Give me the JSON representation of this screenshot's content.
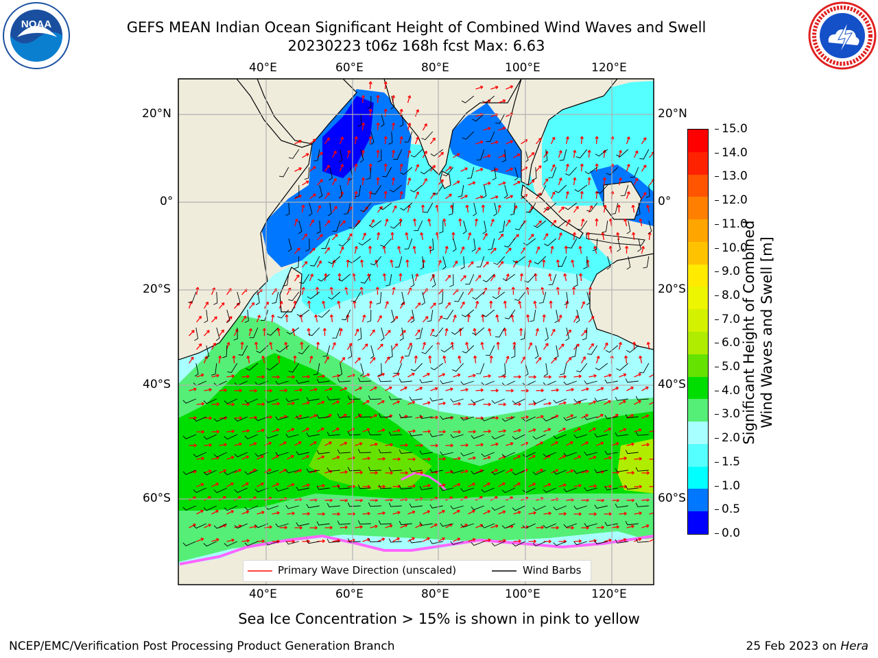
{
  "header": {
    "title_line1": "GEFS MEAN Indian Ocean Significant Height of Combined Wind Waves and Swell",
    "title_line2": "20230223 t06z 168h fcst   Max: 6.63"
  },
  "logos": {
    "noaa": {
      "text": "NOAA",
      "ring_text": "NATIONAL OCEANIC AND ATMOSPHERIC ADMINISTRATION · U.S. DEPARTMENT OF COMMERCE"
    },
    "nws": {
      "ring_text": "NATIONAL WEATHER SERVICE"
    }
  },
  "map": {
    "lon_ticks": [
      "40°E",
      "60°E",
      "80°E",
      "100°E",
      "120°E"
    ],
    "lat_ticks": [
      "20°N",
      "0°",
      "20°S",
      "40°S",
      "60°S"
    ],
    "colors": {
      "land": "#efecdc",
      "grid": "#b0b0b0"
    }
  },
  "legend": {
    "wave_direction": "Primary Wave Direction (unscaled)",
    "wind_barbs": "Wind Barbs",
    "wave_color": "#ff0000",
    "barb_color": "#000000"
  },
  "colorbar": {
    "label_line1": "Significant Height of Combined",
    "label_line2": "Wind Waves and Swell [m]",
    "ticks": [
      "15.0",
      "14.0",
      "13.0",
      "12.0",
      "11.0",
      "10.0",
      "9.0",
      "8.0",
      "7.0",
      "6.0",
      "5.0",
      "4.0",
      "3.0",
      "2.0",
      "1.5",
      "1.0",
      "0.5",
      "0.0"
    ],
    "colors": [
      "#ff0000",
      "#ff2200",
      "#ff5500",
      "#ff8000",
      "#ffa500",
      "#ffc200",
      "#ffea00",
      "#eef500",
      "#d4f200",
      "#b0ec00",
      "#66e200",
      "#00dd00",
      "#55ee77",
      "#a8ffff",
      "#55ffff",
      "#00ffff",
      "#0077ff",
      "#0000ff"
    ]
  },
  "footer": {
    "sea_ice_note": "Sea Ice Concentration > 15% is shown in pink to yellow",
    "branch": "NCEP/EMC/Verification Post Processing Product Generation Branch",
    "date": "25 Feb 2023 on ",
    "system": "Hera"
  }
}
